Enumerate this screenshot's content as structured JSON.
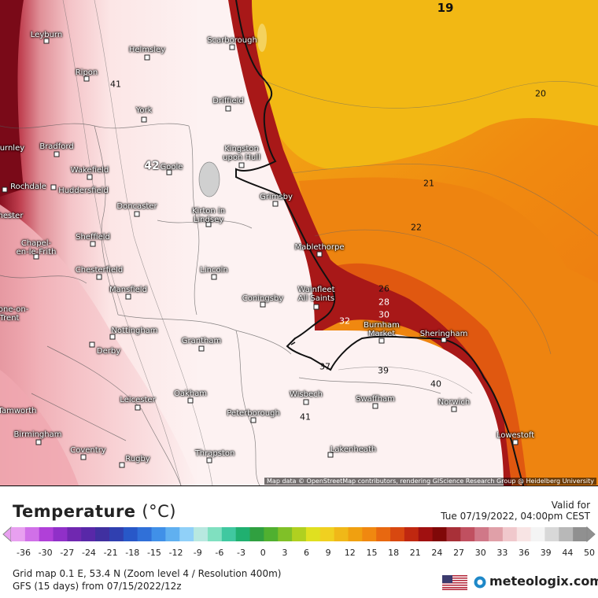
{
  "map": {
    "attribution": "Map data © OpenStreetMap contributors, rendering GIScience Research Group @ Heidelberg University",
    "towns": [
      {
        "name": "Leyburn"
      },
      {
        "name": "Helmsley"
      },
      {
        "name": "Scarborough"
      },
      {
        "name": "Ripon"
      },
      {
        "name": "Driffield"
      },
      {
        "name": "York"
      },
      {
        "name": "Burnley"
      },
      {
        "name": "Bradford"
      },
      {
        "name": "Kingston\nupon Hull"
      },
      {
        "name": "Wakefield"
      },
      {
        "name": "Goole"
      },
      {
        "name": "Rochdale"
      },
      {
        "name": "Huddersfield"
      },
      {
        "name": "Grimsby"
      },
      {
        "name": "Doncaster"
      },
      {
        "name": "Kirton in\nLindsey"
      },
      {
        "name": "Chester"
      },
      {
        "name": "Sheffield"
      },
      {
        "name": "Chapel-\nen-le-Frith"
      },
      {
        "name": "Mablethorpe"
      },
      {
        "name": "Chesterfield"
      },
      {
        "name": "Lincoln"
      },
      {
        "name": "Mansfield"
      },
      {
        "name": "Coningsby"
      },
      {
        "name": "Wainfleet\nAll Saints"
      },
      {
        "name": "Stone-on-\nTrent"
      },
      {
        "name": "Nottingham"
      },
      {
        "name": "Burnham\nMarket"
      },
      {
        "name": "Sheringham"
      },
      {
        "name": "Derby"
      },
      {
        "name": "Grantham"
      },
      {
        "name": "Wisbech"
      },
      {
        "name": "Swaffham"
      },
      {
        "name": "Norwich"
      },
      {
        "name": "Leicester"
      },
      {
        "name": "Oakham"
      },
      {
        "name": "Tamworth"
      },
      {
        "name": "Peterborough"
      },
      {
        "name": "Birmingham"
      },
      {
        "name": "Lowestoft"
      },
      {
        "name": "Coventry"
      },
      {
        "name": "Rugby"
      },
      {
        "name": "Thrapston"
      },
      {
        "name": "Lakenheath"
      }
    ],
    "contour_labels": [
      "19",
      "20",
      "21",
      "22",
      "26",
      "28",
      "30",
      "32",
      "37",
      "39",
      "40",
      "41",
      "41",
      "42"
    ]
  },
  "legend": {
    "title": "Temperature",
    "unit": "(°C)",
    "valid_label": "Valid for",
    "valid_time": "Tue 07/19/2022, 04:00pm CEST",
    "ticks": [
      "-36",
      "-30",
      "-27",
      "-24",
      "-21",
      "-18",
      "-15",
      "-12",
      "-9",
      "-6",
      "-3",
      "0",
      "3",
      "6",
      "9",
      "12",
      "15",
      "18",
      "21",
      "24",
      "27",
      "30",
      "33",
      "36",
      "39",
      "44",
      "50"
    ],
    "colors": [
      "#e8a0f0",
      "#d070e8",
      "#b040d8",
      "#9030c8",
      "#7028b0",
      "#5828a8",
      "#4030a0",
      "#3040b0",
      "#2858c8",
      "#3070d8",
      "#4090e8",
      "#60b0f0",
      "#90d0f8",
      "#b8e8e0",
      "#80e0c0",
      "#40c8a0",
      "#20b070",
      "#30a040",
      "#50b030",
      "#80c028",
      "#b0d020",
      "#e0e020",
      "#f0d020",
      "#f0b818",
      "#f0a010",
      "#f08810",
      "#e86810",
      "#d84810",
      "#c02810",
      "#a01010",
      "#800808",
      "#a83038",
      "#c05060",
      "#d07888",
      "#e0a0a8",
      "#f0c8cc",
      "#f8e4e4",
      "#f4f4f4",
      "#d8d8d8",
      "#b8b8b8",
      "#909090"
    ],
    "grid_info": "Grid map 0.1 E, 53.4 N (Zoom level 4 / Resolution 400m)",
    "model_info": "GFS (15 days) from 07/15/2022/12z",
    "brand": "meteologix.com"
  }
}
